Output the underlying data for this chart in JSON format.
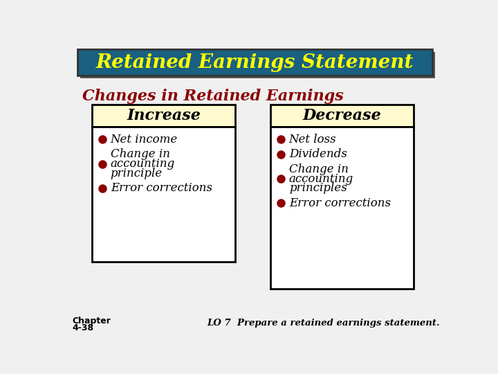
{
  "title": "Retained Earnings Statement",
  "title_color": "#FFFF00",
  "title_bg_color": "#1a6080",
  "title_border_color": "#333333",
  "subtitle": "Changes in Retained Earnings",
  "subtitle_color": "#8B0000",
  "bg_color": "#f0f0f0",
  "box_border_color": "#000000",
  "box_bg_color": "#ffffff",
  "box_header_bg": "#FFFACD",
  "increase_header": "Increase",
  "decrease_header": "Decrease",
  "increase_items": [
    [
      "Net income"
    ],
    [
      "Change in",
      "accounting",
      "principle"
    ],
    [
      "Error corrections"
    ]
  ],
  "decrease_items": [
    [
      "Net loss"
    ],
    [
      "Dividends"
    ],
    [
      "Change in",
      "accounting",
      "principles"
    ],
    [
      "Error corrections"
    ]
  ],
  "bullet_color": "#8B0000",
  "footer_left_line1": "Chapter",
  "footer_left_line2": "4-38",
  "footer_right": "LO 7  Prepare a retained earnings statement.",
  "footer_color": "#000000",
  "header_text_color": "#000000",
  "shadow_color": "#555555"
}
